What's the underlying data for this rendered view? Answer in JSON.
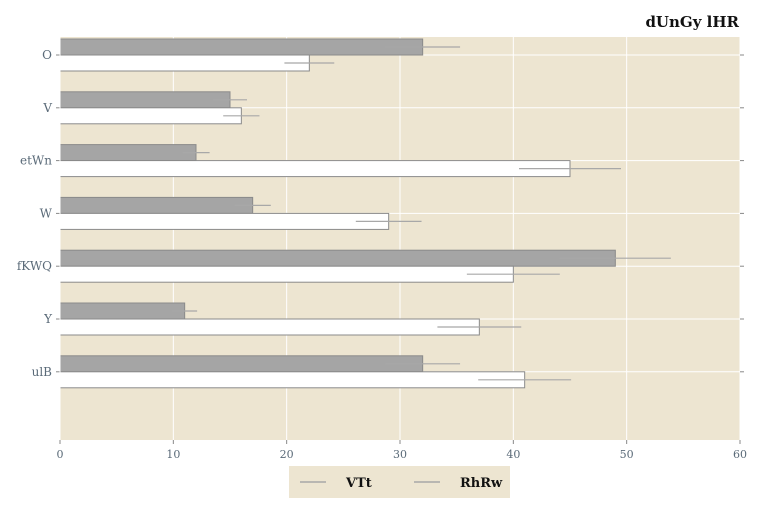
{
  "chart_data": {
    "type": "bar",
    "orientation": "horizontal",
    "title": "dUnGy lHR",
    "xlabel": "",
    "ylabel": "",
    "xlim": [
      0,
      60
    ],
    "x_ticks": [
      0,
      10,
      20,
      30,
      40,
      50,
      60
    ],
    "grid": true,
    "legend_position": "bottom-center",
    "categories": [
      "O",
      "V",
      "etWn",
      "W",
      "fKWQ",
      "Y",
      "ulB"
    ],
    "series": [
      {
        "name": "VTt",
        "color": "#a5a5a5",
        "values": [
          32,
          15,
          12,
          17,
          49,
          11,
          32
        ],
        "errors": [
          3.3,
          1.5,
          1.2,
          1.6,
          4.9,
          1.1,
          3.3
        ]
      },
      {
        "name": "RhRw",
        "color": "#ffffff",
        "values": [
          22,
          16,
          45,
          29,
          40,
          37,
          41
        ],
        "errors": [
          2.2,
          1.6,
          4.5,
          2.9,
          4.1,
          3.7,
          4.1
        ]
      }
    ],
    "colors": {
      "plot_background": "#ede5d1",
      "grid": "#ffffff",
      "bar_edge": "#8a8a8a",
      "error_bar": "#a8a8a8",
      "legend_background": "#ede5d1"
    }
  }
}
